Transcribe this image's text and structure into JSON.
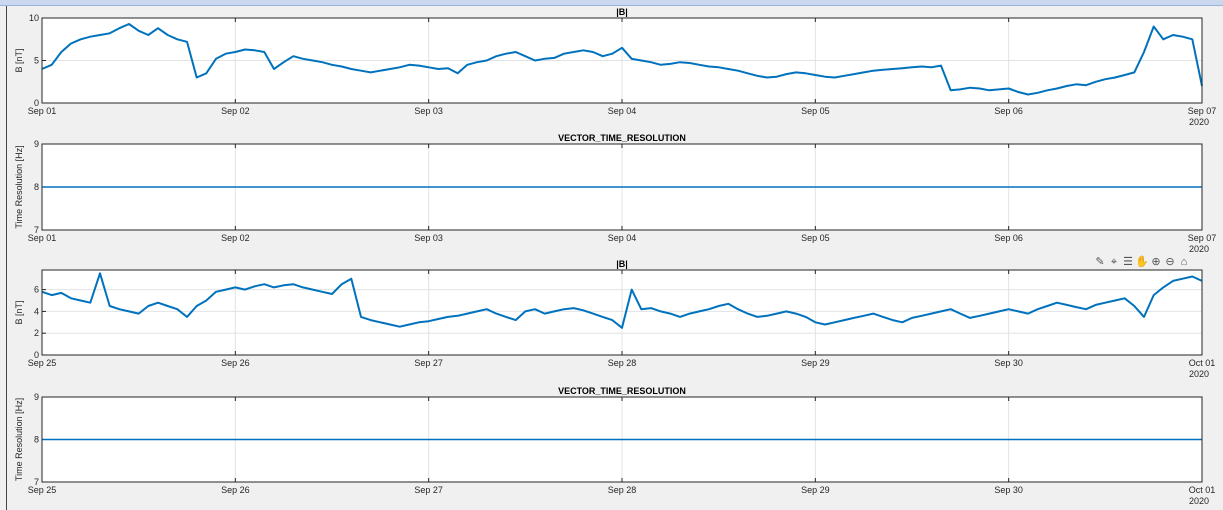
{
  "colors": {
    "line": "#0072BD",
    "grid": "#e3e3e3",
    "axes_bg": "#ffffff",
    "figure_bg": "#f0f0f0"
  },
  "toolbar": {
    "icons": [
      "brush-icon",
      "data-tips-icon",
      "legend-icon",
      "pan-hand-icon",
      "zoom-in-icon",
      "zoom-out-icon",
      "home-icon"
    ]
  },
  "chart_data": [
    {
      "type": "line",
      "title": "|B|",
      "ylabel": "B [nT]",
      "xlabel": "",
      "x_tick_labels": [
        "Sep 01",
        "Sep 02",
        "Sep 03",
        "Sep 04",
        "Sep 05",
        "Sep 06",
        "Sep 07"
      ],
      "x_year_label": "2020",
      "y_ticks": [
        0,
        5,
        10
      ],
      "ylim": [
        0,
        10
      ],
      "xlim_days": [
        0,
        6
      ],
      "grid": true,
      "series": [
        {
          "x": [
            0,
            0.05,
            0.1,
            0.15,
            0.2,
            0.25,
            0.3,
            0.35,
            0.4,
            0.45,
            0.5,
            0.55,
            0.6,
            0.65,
            0.7,
            0.75,
            0.8,
            0.85,
            0.9,
            0.95,
            1.0,
            1.05,
            1.1,
            1.15,
            1.2,
            1.25,
            1.3,
            1.35,
            1.4,
            1.45,
            1.5,
            1.55,
            1.6,
            1.65,
            1.7,
            1.75,
            1.8,
            1.85,
            1.9,
            1.95,
            2.0,
            2.05,
            2.1,
            2.15,
            2.2,
            2.25,
            2.3,
            2.35,
            2.4,
            2.45,
            2.5,
            2.55,
            2.6,
            2.65,
            2.7,
            2.75,
            2.8,
            2.85,
            2.9,
            2.95,
            3.0,
            3.05,
            3.1,
            3.15,
            3.2,
            3.25,
            3.3,
            3.35,
            3.4,
            3.45,
            3.5,
            3.55,
            3.6,
            3.65,
            3.7,
            3.75,
            3.8,
            3.85,
            3.9,
            3.95,
            4.0,
            4.05,
            4.1,
            4.15,
            4.2,
            4.25,
            4.3,
            4.35,
            4.4,
            4.45,
            4.5,
            4.55,
            4.6,
            4.65,
            4.7,
            4.75,
            4.8,
            4.85,
            4.9,
            4.95,
            5.0,
            5.05,
            5.1,
            5.15,
            5.2,
            5.25,
            5.3,
            5.35,
            5.4,
            5.45,
            5.5,
            5.55,
            5.6,
            5.65,
            5.7,
            5.75,
            5.8,
            5.85,
            5.9,
            5.95,
            6.0
          ],
          "y": [
            4,
            4.5,
            6,
            7,
            7.5,
            7.8,
            8,
            8.2,
            8.8,
            9.3,
            8.5,
            8,
            8.8,
            8,
            7.5,
            7.2,
            3,
            3.5,
            5.2,
            5.8,
            6,
            6.3,
            6.2,
            6,
            4,
            4.8,
            5.5,
            5.2,
            5,
            4.8,
            4.5,
            4.3,
            4,
            3.8,
            3.6,
            3.8,
            4,
            4.2,
            4.5,
            4.4,
            4.2,
            4,
            4.1,
            3.5,
            4.5,
            4.8,
            5,
            5.5,
            5.8,
            6,
            5.5,
            5,
            5.2,
            5.3,
            5.8,
            6,
            6.2,
            6,
            5.5,
            5.8,
            6.5,
            5.2,
            5,
            4.8,
            4.5,
            4.6,
            4.8,
            4.7,
            4.5,
            4.3,
            4.2,
            4,
            3.8,
            3.5,
            3.2,
            3,
            3.1,
            3.4,
            3.6,
            3.5,
            3.3,
            3.1,
            3,
            3.2,
            3.4,
            3.6,
            3.8,
            3.9,
            4,
            4.1,
            4.2,
            4.3,
            4.2,
            4.4,
            1.5,
            1.6,
            1.8,
            1.7,
            1.5,
            1.6,
            1.7,
            1.3,
            1,
            1.2,
            1.5,
            1.7,
            2,
            2.2,
            2.1,
            2.5,
            2.8,
            3,
            3.3,
            3.6,
            6,
            9,
            7.5,
            8,
            7.8,
            7.5,
            2
          ]
        }
      ]
    },
    {
      "type": "line",
      "title": "VECTOR_TIME_RESOLUTION",
      "ylabel": "Time Resolution [Hz]",
      "xlabel": "",
      "x_tick_labels": [
        "Sep 01",
        "Sep 02",
        "Sep 03",
        "Sep 04",
        "Sep 05",
        "Sep 06",
        "Sep 07"
      ],
      "x_year_label": "2020",
      "y_ticks": [
        7,
        8,
        9
      ],
      "ylim": [
        7,
        9
      ],
      "xlim_days": [
        0,
        6
      ],
      "grid": true,
      "series": [
        {
          "x": [
            0,
            6
          ],
          "y": [
            8,
            8
          ]
        }
      ]
    },
    {
      "type": "line",
      "title": "|B|",
      "ylabel": "B [nT]",
      "xlabel": "",
      "x_tick_labels": [
        "Sep 25",
        "Sep 26",
        "Sep 27",
        "Sep 28",
        "Sep 29",
        "Sep 30",
        "Oct 01"
      ],
      "x_year_label": "2020",
      "y_ticks": [
        0,
        2,
        4,
        6
      ],
      "ylim": [
        0,
        7.8
      ],
      "xlim_days": [
        0,
        6
      ],
      "grid": true,
      "series": [
        {
          "x": [
            0,
            0.05,
            0.1,
            0.15,
            0.2,
            0.25,
            0.3,
            0.35,
            0.4,
            0.45,
            0.5,
            0.55,
            0.6,
            0.65,
            0.7,
            0.75,
            0.8,
            0.85,
            0.9,
            0.95,
            1.0,
            1.05,
            1.1,
            1.15,
            1.2,
            1.25,
            1.3,
            1.35,
            1.4,
            1.45,
            1.5,
            1.55,
            1.6,
            1.65,
            1.7,
            1.75,
            1.8,
            1.85,
            1.9,
            1.95,
            2.0,
            2.05,
            2.1,
            2.15,
            2.2,
            2.25,
            2.3,
            2.35,
            2.4,
            2.45,
            2.5,
            2.55,
            2.6,
            2.65,
            2.7,
            2.75,
            2.8,
            2.85,
            2.9,
            2.95,
            3.0,
            3.05,
            3.1,
            3.15,
            3.2,
            3.25,
            3.3,
            3.35,
            3.4,
            3.45,
            3.5,
            3.55,
            3.6,
            3.65,
            3.7,
            3.75,
            3.8,
            3.85,
            3.9,
            3.95,
            4.0,
            4.05,
            4.1,
            4.15,
            4.2,
            4.25,
            4.3,
            4.35,
            4.4,
            4.45,
            4.5,
            4.55,
            4.6,
            4.65,
            4.7,
            4.75,
            4.8,
            4.85,
            4.9,
            4.95,
            5.0,
            5.05,
            5.1,
            5.15,
            5.2,
            5.25,
            5.3,
            5.35,
            5.4,
            5.45,
            5.5,
            5.55,
            5.6,
            5.65,
            5.7,
            5.75,
            5.8,
            5.85,
            5.9,
            5.95,
            6.0
          ],
          "y": [
            5.8,
            5.5,
            5.7,
            5.2,
            5,
            4.8,
            7.5,
            4.5,
            4.2,
            4,
            3.8,
            4.5,
            4.8,
            4.5,
            4.2,
            3.5,
            4.5,
            5,
            5.8,
            6,
            6.2,
            6,
            6.3,
            6.5,
            6.2,
            6.4,
            6.5,
            6.2,
            6,
            5.8,
            5.6,
            6.5,
            7,
            3.5,
            3.2,
            3,
            2.8,
            2.6,
            2.8,
            3,
            3.1,
            3.3,
            3.5,
            3.6,
            3.8,
            4,
            4.2,
            3.8,
            3.5,
            3.2,
            4,
            4.2,
            3.8,
            4,
            4.2,
            4.3,
            4.1,
            3.8,
            3.5,
            3.2,
            2.5,
            6,
            4.2,
            4.3,
            4,
            3.8,
            3.5,
            3.8,
            4,
            4.2,
            4.5,
            4.7,
            4.2,
            3.8,
            3.5,
            3.6,
            3.8,
            4,
            3.8,
            3.5,
            3,
            2.8,
            3,
            3.2,
            3.4,
            3.6,
            3.8,
            3.5,
            3.2,
            3,
            3.4,
            3.6,
            3.8,
            4,
            4.2,
            3.8,
            3.4,
            3.6,
            3.8,
            4,
            4.2,
            4,
            3.8,
            4.2,
            4.5,
            4.8,
            4.6,
            4.4,
            4.2,
            4.6,
            4.8,
            5,
            5.2,
            4.5,
            3.5,
            5.5,
            6.2,
            6.8,
            7,
            7.2,
            6.8
          ]
        }
      ]
    },
    {
      "type": "line",
      "title": "VECTOR_TIME_RESOLUTION",
      "ylabel": "Time Resolution [Hz]",
      "xlabel": "",
      "x_tick_labels": [
        "Sep 25",
        "Sep 26",
        "Sep 27",
        "Sep 28",
        "Sep 29",
        "Sep 30",
        "Oct 01"
      ],
      "x_year_label": "2020",
      "y_ticks": [
        7,
        8,
        9
      ],
      "ylim": [
        7,
        9
      ],
      "xlim_days": [
        0,
        6
      ],
      "grid": true,
      "series": [
        {
          "x": [
            0,
            6
          ],
          "y": [
            8,
            8
          ]
        }
      ]
    }
  ]
}
